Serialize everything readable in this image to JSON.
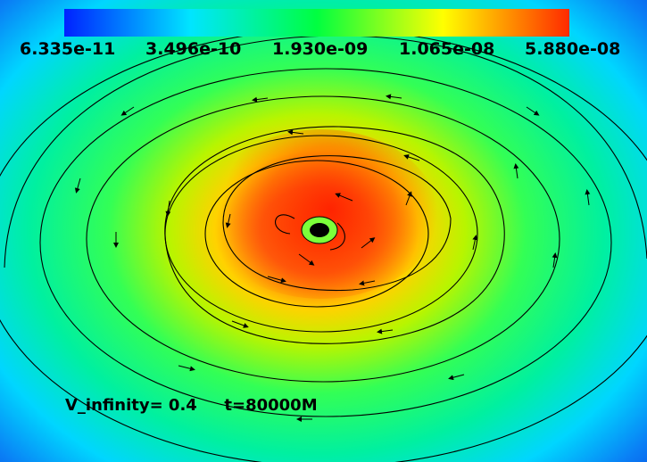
{
  "colorbar": {
    "ticks": [
      "6.335e-11",
      "3.496e-10",
      "1.930e-09",
      "1.065e-08",
      "5.880e-08"
    ],
    "colors": [
      "#0022ff",
      "#00e5ff",
      "#00ff40",
      "#ffff00",
      "#ff2a00"
    ]
  },
  "caption": {
    "velocity": "V_infinity= 0.4",
    "time": "t=80000M"
  }
}
